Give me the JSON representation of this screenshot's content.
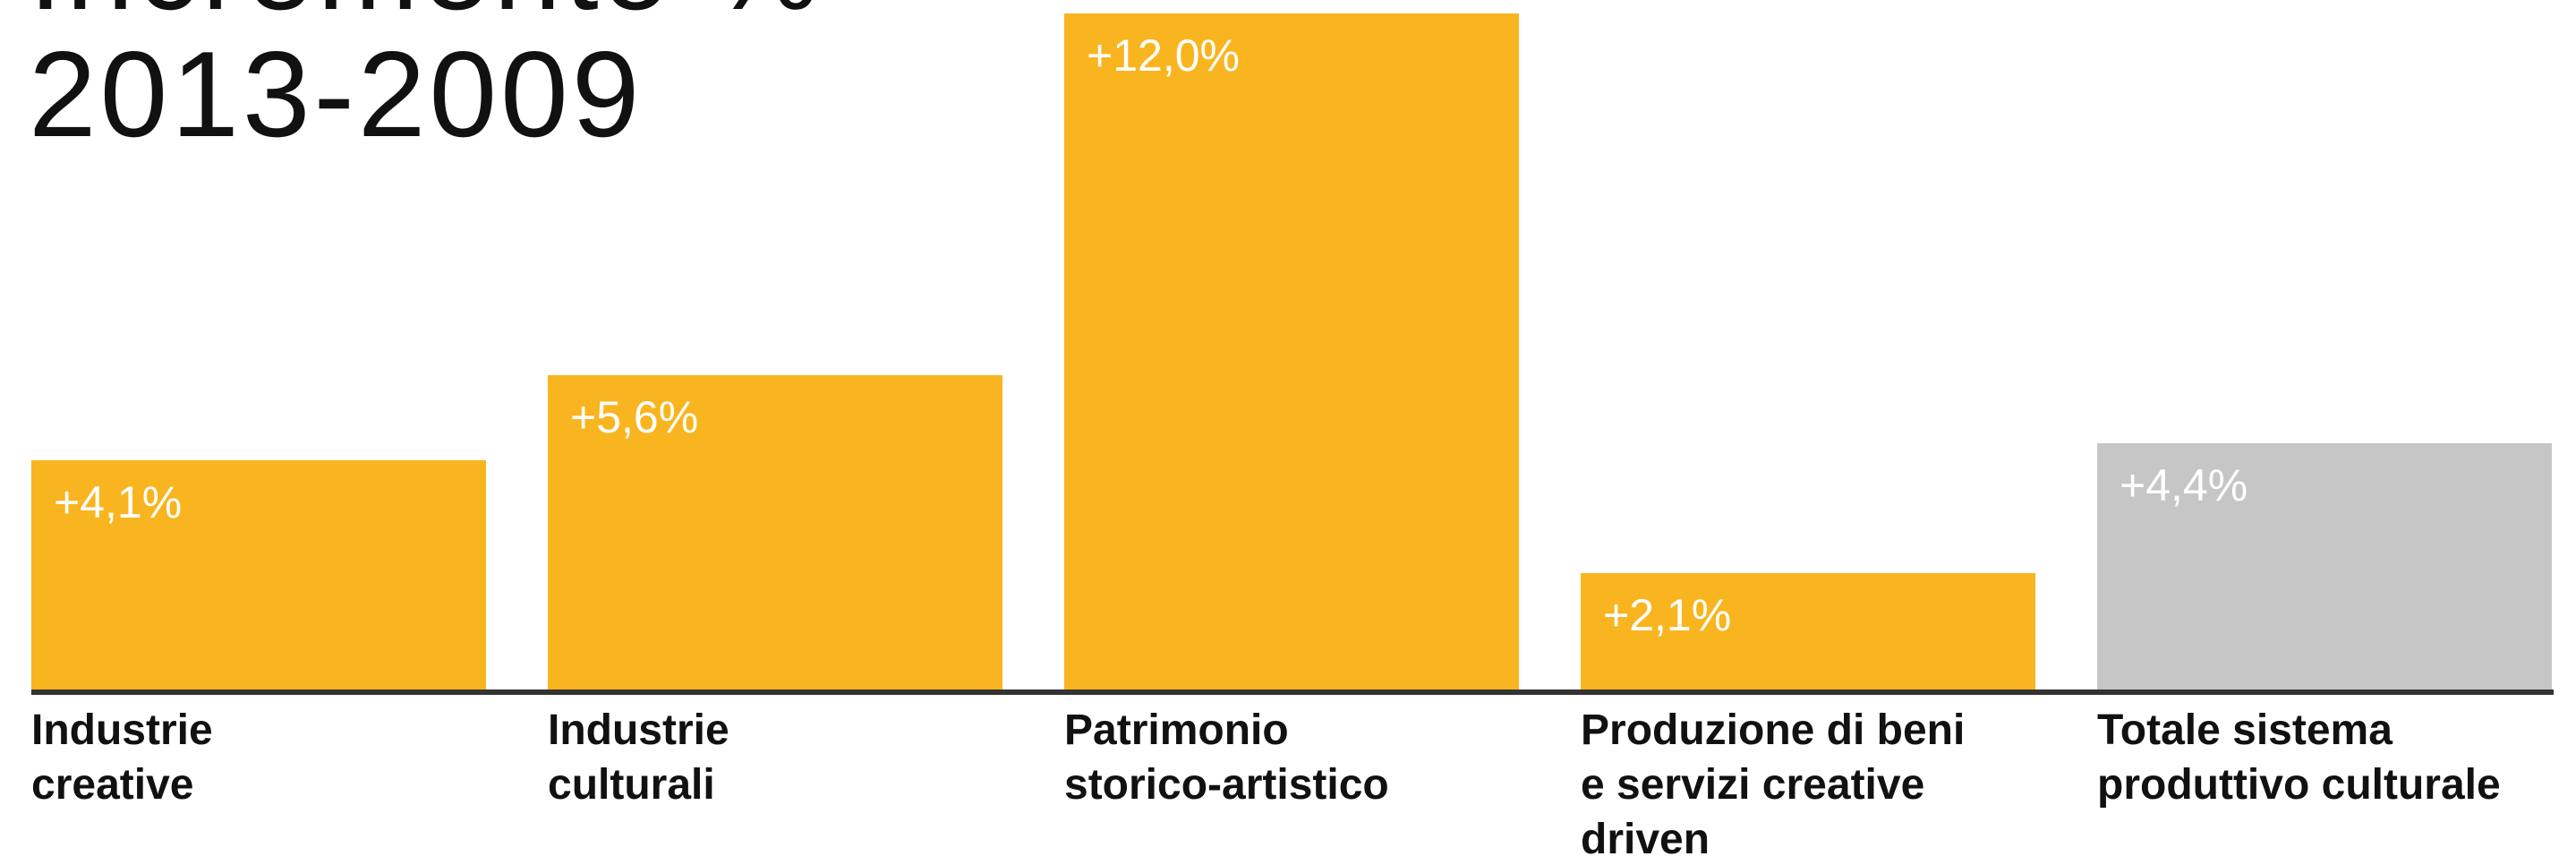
{
  "chart_data": {
    "type": "bar",
    "title": [
      "Incremento %",
      "2013-2009"
    ],
    "categories": [
      [
        "Industrie",
        "creative"
      ],
      [
        "Industrie",
        "culturali"
      ],
      [
        "Patrimonio",
        "storico-artistico"
      ],
      [
        "Produzione di beni",
        "e servizi creative",
        "driven"
      ],
      [
        "Totale sistema",
        "produttivo culturale"
      ]
    ],
    "values": [
      4.1,
      5.6,
      12.0,
      2.1,
      4.4
    ],
    "value_labels": [
      "+4,1%",
      "+5,6%",
      "+12,0%",
      "+2,1%",
      "+4,4%"
    ],
    "colors": [
      "#f9b51f",
      "#f9b51f",
      "#f9b51f",
      "#f9b51f",
      "#c6c6c6"
    ],
    "ylim": [
      0,
      12
    ]
  }
}
